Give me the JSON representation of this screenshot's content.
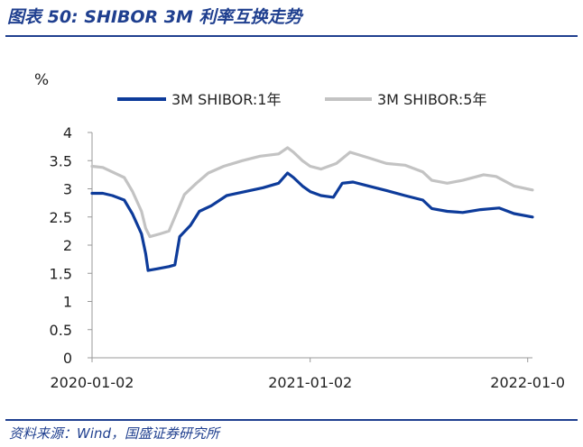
{
  "title": "图表 50:  SHIBOR 3M 利率互换走势",
  "source": "资料来源：Wind，国盛证券研究所",
  "chart_data": {
    "type": "line",
    "unit_label": "%",
    "ylim": [
      0,
      4
    ],
    "yticks": [
      "0",
      "0.5",
      "1",
      "1.5",
      "2",
      "2.5",
      "3",
      "3.5",
      "4"
    ],
    "x_tick_labels": [
      "2020-01-02",
      "2021-01-02",
      "2022-01-0"
    ],
    "x_tick_dates": [
      "2020-01-02",
      "2021-01-02",
      "2022-01-02"
    ],
    "xrange": [
      "2020-01-02",
      "2022-01-10"
    ],
    "legend_position": "top",
    "series": [
      {
        "name": "3M SHIBOR:1年",
        "color": "#0d3b9a",
        "points": [
          [
            "2020-01-02",
            2.92
          ],
          [
            "2020-01-20",
            2.92
          ],
          [
            "2020-02-05",
            2.88
          ],
          [
            "2020-02-25",
            2.8
          ],
          [
            "2020-03-10",
            2.55
          ],
          [
            "2020-03-25",
            2.2
          ],
          [
            "2020-04-01",
            1.85
          ],
          [
            "2020-04-05",
            1.55
          ],
          [
            "2020-04-20",
            1.58
          ],
          [
            "2020-05-10",
            1.62
          ],
          [
            "2020-05-20",
            1.65
          ],
          [
            "2020-05-28",
            2.15
          ],
          [
            "2020-06-15",
            2.35
          ],
          [
            "2020-06-30",
            2.6
          ],
          [
            "2020-07-20",
            2.7
          ],
          [
            "2020-08-15",
            2.88
          ],
          [
            "2020-09-15",
            2.95
          ],
          [
            "2020-10-15",
            3.02
          ],
          [
            "2020-11-10",
            3.1
          ],
          [
            "2020-11-25",
            3.28
          ],
          [
            "2020-12-05",
            3.2
          ],
          [
            "2020-12-20",
            3.05
          ],
          [
            "2021-01-02",
            2.95
          ],
          [
            "2021-01-20",
            2.88
          ],
          [
            "2021-02-10",
            2.85
          ],
          [
            "2021-02-25",
            3.1
          ],
          [
            "2021-03-15",
            3.12
          ],
          [
            "2021-04-10",
            3.05
          ],
          [
            "2021-05-10",
            2.97
          ],
          [
            "2021-06-10",
            2.88
          ],
          [
            "2021-07-10",
            2.8
          ],
          [
            "2021-07-25",
            2.65
          ],
          [
            "2021-08-20",
            2.6
          ],
          [
            "2021-09-15",
            2.58
          ],
          [
            "2021-10-15",
            2.63
          ],
          [
            "2021-11-15",
            2.66
          ],
          [
            "2021-12-10",
            2.56
          ],
          [
            "2022-01-10",
            2.5
          ]
        ]
      },
      {
        "name": "3M SHIBOR:5年",
        "color": "#c3c3c3",
        "points": [
          [
            "2020-01-02",
            3.4
          ],
          [
            "2020-01-20",
            3.38
          ],
          [
            "2020-02-05",
            3.3
          ],
          [
            "2020-02-25",
            3.2
          ],
          [
            "2020-03-10",
            2.95
          ],
          [
            "2020-03-25",
            2.6
          ],
          [
            "2020-04-01",
            2.3
          ],
          [
            "2020-04-08",
            2.15
          ],
          [
            "2020-04-25",
            2.2
          ],
          [
            "2020-05-10",
            2.25
          ],
          [
            "2020-05-20",
            2.5
          ],
          [
            "2020-06-05",
            2.9
          ],
          [
            "2020-06-25",
            3.1
          ],
          [
            "2020-07-15",
            3.28
          ],
          [
            "2020-08-10",
            3.4
          ],
          [
            "2020-09-10",
            3.5
          ],
          [
            "2020-10-10",
            3.58
          ],
          [
            "2020-11-10",
            3.62
          ],
          [
            "2020-11-25",
            3.73
          ],
          [
            "2020-12-05",
            3.65
          ],
          [
            "2020-12-20",
            3.5
          ],
          [
            "2021-01-02",
            3.4
          ],
          [
            "2021-01-20",
            3.35
          ],
          [
            "2021-02-15",
            3.45
          ],
          [
            "2021-03-10",
            3.65
          ],
          [
            "2021-04-10",
            3.55
          ],
          [
            "2021-05-10",
            3.45
          ],
          [
            "2021-06-10",
            3.42
          ],
          [
            "2021-07-10",
            3.3
          ],
          [
            "2021-07-25",
            3.15
          ],
          [
            "2021-08-20",
            3.1
          ],
          [
            "2021-09-15",
            3.15
          ],
          [
            "2021-10-20",
            3.25
          ],
          [
            "2021-11-10",
            3.22
          ],
          [
            "2021-12-10",
            3.05
          ],
          [
            "2022-01-10",
            2.98
          ]
        ]
      }
    ]
  }
}
